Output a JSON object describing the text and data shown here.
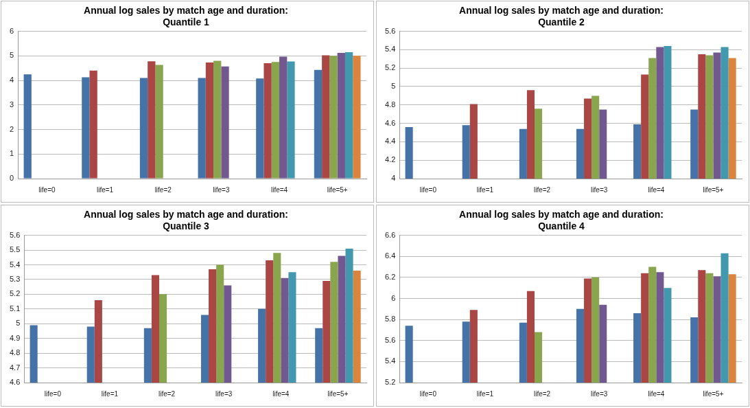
{
  "chart_data": [
    {
      "type": "bar",
      "title": "Annual log sales by match age and duration:\nQuantile 1",
      "categories": [
        "life=0",
        "life=1",
        "life=2",
        "life=3",
        "life=4",
        "life=5+"
      ],
      "series": [
        {
          "color": "#4572a7",
          "values": [
            4.25,
            4.13,
            4.1,
            4.1,
            4.08,
            4.43
          ]
        },
        {
          "color": "#aa4643",
          "values": [
            null,
            4.4,
            4.78,
            4.73,
            4.7,
            5.02
          ]
        },
        {
          "color": "#89a54e",
          "values": [
            null,
            null,
            4.63,
            4.8,
            4.75,
            5.0
          ]
        },
        {
          "color": "#71588f",
          "values": [
            null,
            null,
            null,
            4.57,
            4.97,
            5.12
          ]
        },
        {
          "color": "#4198af",
          "values": [
            null,
            null,
            null,
            null,
            4.77,
            5.15
          ]
        },
        {
          "color": "#db843d",
          "values": [
            null,
            null,
            null,
            null,
            null,
            5.0
          ]
        }
      ],
      "ylim": [
        0,
        6
      ],
      "yticks": [
        0,
        1,
        2,
        3,
        4,
        5,
        6
      ],
      "grid": "y",
      "legend": false
    },
    {
      "type": "bar",
      "title": "Annual log sales by match age and duration:\nQuantile 2",
      "categories": [
        "life=0",
        "life=1",
        "life=2",
        "life=3",
        "life=4",
        "life=5+"
      ],
      "series": [
        {
          "color": "#4572a7",
          "values": [
            4.56,
            4.58,
            4.54,
            4.54,
            4.59,
            4.75
          ]
        },
        {
          "color": "#aa4643",
          "values": [
            null,
            4.81,
            4.96,
            4.87,
            5.13,
            5.35
          ]
        },
        {
          "color": "#89a54e",
          "values": [
            null,
            null,
            4.76,
            4.9,
            5.31,
            5.34
          ]
        },
        {
          "color": "#71588f",
          "values": [
            null,
            null,
            null,
            4.75,
            5.43,
            5.37
          ]
        },
        {
          "color": "#4198af",
          "values": [
            null,
            null,
            null,
            null,
            5.44,
            5.43
          ]
        },
        {
          "color": "#db843d",
          "values": [
            null,
            null,
            null,
            null,
            null,
            5.31
          ]
        }
      ],
      "ylim": [
        4,
        5.6
      ],
      "yticks": [
        4,
        4.2,
        4.4,
        4.6,
        4.8,
        5,
        5.2,
        5.4,
        5.6
      ],
      "grid": "y",
      "legend": false
    },
    {
      "type": "bar",
      "title": "Annual log sales by match age and duration:\nQuantile 3",
      "categories": [
        "life=0",
        "life=1",
        "life=2",
        "life=3",
        "life=4",
        "life=5+"
      ],
      "series": [
        {
          "color": "#4572a7",
          "values": [
            4.99,
            4.98,
            4.97,
            5.06,
            5.1,
            4.97
          ]
        },
        {
          "color": "#aa4643",
          "values": [
            null,
            5.16,
            5.33,
            5.37,
            5.43,
            5.29
          ]
        },
        {
          "color": "#89a54e",
          "values": [
            null,
            null,
            5.2,
            5.4,
            5.48,
            5.42
          ]
        },
        {
          "color": "#71588f",
          "values": [
            null,
            null,
            null,
            5.26,
            5.31,
            5.46
          ]
        },
        {
          "color": "#4198af",
          "values": [
            null,
            null,
            null,
            null,
            5.35,
            5.51
          ]
        },
        {
          "color": "#db843d",
          "values": [
            null,
            null,
            null,
            null,
            null,
            5.36
          ]
        }
      ],
      "ylim": [
        4.6,
        5.6
      ],
      "yticks": [
        4.6,
        4.7,
        4.8,
        4.9,
        5,
        5.1,
        5.2,
        5.3,
        5.4,
        5.5,
        5.6
      ],
      "grid": "y",
      "legend": false
    },
    {
      "type": "bar",
      "title": "Annual log sales by match age and duration:\nQuantile 4",
      "categories": [
        "life=0",
        "life=1",
        "life=2",
        "life=3",
        "life=4",
        "life=5+"
      ],
      "series": [
        {
          "color": "#4572a7",
          "values": [
            5.74,
            5.78,
            5.77,
            5.9,
            5.86,
            5.82
          ]
        },
        {
          "color": "#aa4643",
          "values": [
            null,
            5.89,
            6.07,
            6.19,
            6.24,
            6.27
          ]
        },
        {
          "color": "#89a54e",
          "values": [
            null,
            null,
            5.68,
            6.2,
            6.3,
            6.24
          ]
        },
        {
          "color": "#71588f",
          "values": [
            null,
            null,
            null,
            5.94,
            6.25,
            6.21
          ]
        },
        {
          "color": "#4198af",
          "values": [
            null,
            null,
            null,
            null,
            6.1,
            6.43
          ]
        },
        {
          "color": "#db843d",
          "values": [
            null,
            null,
            null,
            null,
            null,
            6.23
          ]
        }
      ],
      "ylim": [
        5.2,
        6.6
      ],
      "yticks": [
        5.2,
        5.4,
        5.6,
        5.8,
        6,
        6.2,
        6.4,
        6.6
      ],
      "grid": "y",
      "legend": false
    }
  ]
}
